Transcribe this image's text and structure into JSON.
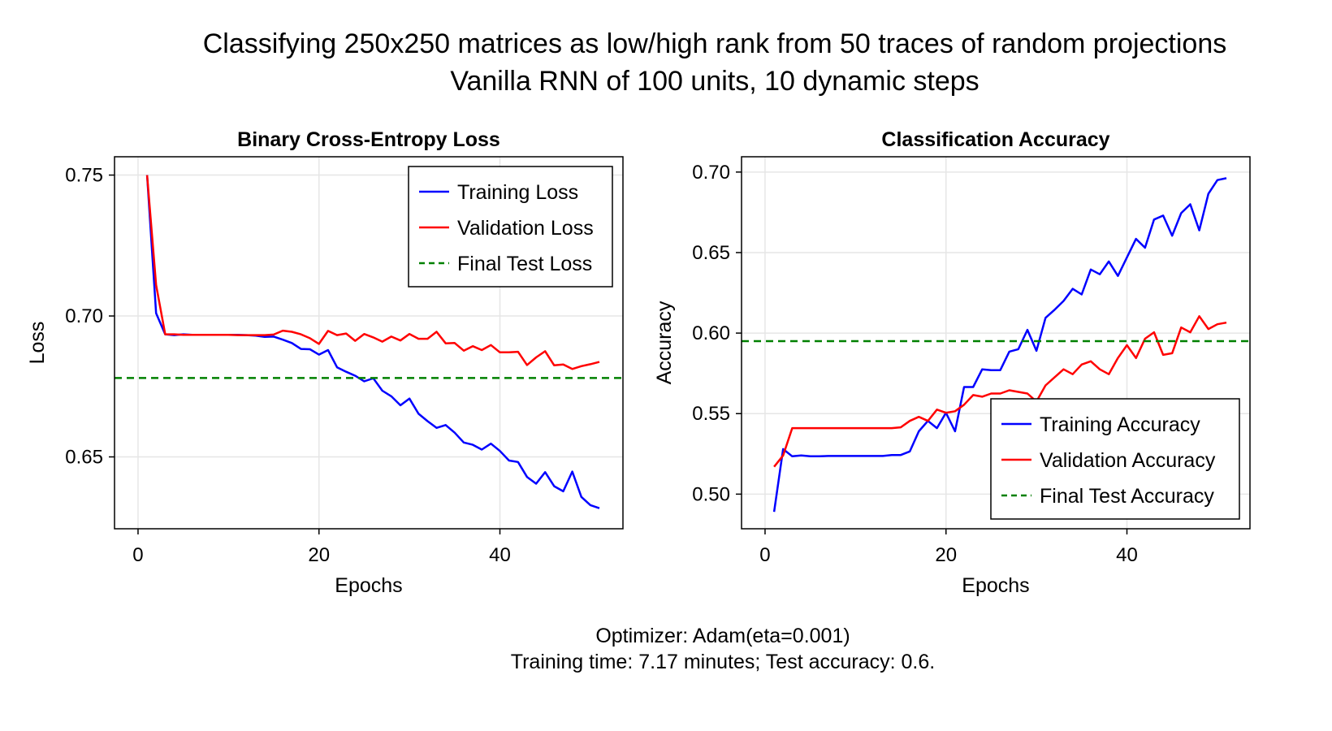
{
  "figure": {
    "title_line1": "Classifying 250x250 matrices as low/high rank from 50 traces of random projections",
    "title_line2": "Vanilla RNN of 100 units, 10 dynamic steps",
    "footer_line1": "Optimizer: Adam(eta=0.001)",
    "footer_line2": "Training time: 7.17 minutes; Test accuracy: 0.6."
  },
  "colors": {
    "training": "#0000ff",
    "validation": "#ff0000",
    "final_test": "#008000",
    "grid": "#e6e6e6"
  },
  "chart_data": [
    {
      "type": "line",
      "title": "Binary Cross-Entropy Loss",
      "xlabel": "Epochs",
      "ylabel": "Loss",
      "xlim": [
        -2.6,
        53.6
      ],
      "ylim": [
        0.6245,
        0.7565
      ],
      "xticks": [
        0,
        20,
        40
      ],
      "xtick_labels": [
        "0",
        "20",
        "40"
      ],
      "yticks": [
        0.65,
        0.7,
        0.75
      ],
      "ytick_labels": [
        "0.65",
        "0.70",
        "0.75"
      ],
      "grid": true,
      "legend_position": "top-right",
      "x": [
        1,
        2,
        3,
        4,
        5,
        6,
        7,
        8,
        9,
        10,
        11,
        12,
        13,
        14,
        15,
        16,
        17,
        18,
        19,
        20,
        21,
        22,
        23,
        24,
        25,
        26,
        27,
        28,
        29,
        30,
        31,
        32,
        33,
        34,
        35,
        36,
        37,
        38,
        39,
        40,
        41,
        42,
        43,
        44,
        45,
        46,
        47,
        48,
        49,
        50,
        51
      ],
      "series": [
        {
          "name": "Training Loss",
          "color": "#0000ff",
          "values": [
            0.75,
            0.701,
            0.6935,
            0.6932,
            0.6935,
            0.6933,
            0.6933,
            0.6933,
            0.6933,
            0.6933,
            0.6933,
            0.6932,
            0.693,
            0.6926,
            0.6927,
            0.6916,
            0.6904,
            0.6883,
            0.6882,
            0.6863,
            0.6879,
            0.6818,
            0.6802,
            0.6788,
            0.6768,
            0.6779,
            0.6735,
            0.6715,
            0.6683,
            0.6707,
            0.6653,
            0.6627,
            0.6603,
            0.6613,
            0.6586,
            0.6551,
            0.6543,
            0.6526,
            0.6547,
            0.6521,
            0.6487,
            0.6482,
            0.6429,
            0.6405,
            0.6446,
            0.6396,
            0.6378,
            0.6448,
            0.6358,
            0.6329,
            0.6318
          ]
        },
        {
          "name": "Validation Loss",
          "color": "#ff0000",
          "values": [
            0.75,
            0.711,
            0.6935,
            0.6935,
            0.6933,
            0.6933,
            0.6933,
            0.6933,
            0.6933,
            0.6933,
            0.6932,
            0.6932,
            0.6932,
            0.6932,
            0.6934,
            0.6948,
            0.6944,
            0.6935,
            0.6921,
            0.6901,
            0.6947,
            0.6932,
            0.6938,
            0.6912,
            0.6936,
            0.6924,
            0.6909,
            0.6927,
            0.6913,
            0.6936,
            0.6919,
            0.6919,
            0.6944,
            0.6903,
            0.6904,
            0.6877,
            0.6893,
            0.6879,
            0.6897,
            0.6871,
            0.6871,
            0.6873,
            0.6826,
            0.6853,
            0.6875,
            0.6825,
            0.6828,
            0.6812,
            0.6822,
            0.6829,
            0.6837
          ]
        },
        {
          "name": "Final Test Loss",
          "color": "#008000",
          "constant": 0.678,
          "dashed": true
        }
      ]
    },
    {
      "type": "line",
      "title": "Classification Accuracy",
      "xlabel": "Epochs",
      "ylabel": "Accuracy",
      "xlim": [
        -2.6,
        53.6
      ],
      "ylim": [
        0.4785,
        0.7095
      ],
      "xticks": [
        0,
        20,
        40
      ],
      "xtick_labels": [
        "0",
        "20",
        "40"
      ],
      "yticks": [
        0.5,
        0.55,
        0.6,
        0.65,
        0.7
      ],
      "ytick_labels": [
        "0.50",
        "0.55",
        "0.60",
        "0.65",
        "0.70"
      ],
      "grid": true,
      "legend_position": "bottom-right",
      "x": [
        1,
        2,
        3,
        4,
        5,
        6,
        7,
        8,
        9,
        10,
        11,
        12,
        13,
        14,
        15,
        16,
        17,
        18,
        19,
        20,
        21,
        22,
        23,
        24,
        25,
        26,
        27,
        28,
        29,
        30,
        31,
        32,
        33,
        34,
        35,
        36,
        37,
        38,
        39,
        40,
        41,
        42,
        43,
        44,
        45,
        46,
        47,
        48,
        49,
        50,
        51
      ],
      "series": [
        {
          "name": "Training Accuracy",
          "color": "#0000ff",
          "values": [
            0.489,
            0.528,
            0.5235,
            0.524,
            0.5235,
            0.5235,
            0.5237,
            0.5237,
            0.5237,
            0.5237,
            0.5237,
            0.5237,
            0.5237,
            0.5243,
            0.5243,
            0.5265,
            0.539,
            0.5455,
            0.541,
            0.5505,
            0.539,
            0.5665,
            0.5665,
            0.5775,
            0.577,
            0.577,
            0.5885,
            0.59,
            0.602,
            0.589,
            0.6095,
            0.6145,
            0.62,
            0.6275,
            0.624,
            0.6395,
            0.6365,
            0.6445,
            0.6355,
            0.647,
            0.6585,
            0.653,
            0.6705,
            0.673,
            0.6605,
            0.6745,
            0.68,
            0.6638,
            0.6865,
            0.695,
            0.6962
          ]
        },
        {
          "name": "Validation Accuracy",
          "color": "#ff0000",
          "values": [
            0.517,
            0.524,
            0.541,
            0.541,
            0.541,
            0.541,
            0.541,
            0.541,
            0.541,
            0.541,
            0.541,
            0.541,
            0.541,
            0.541,
            0.5415,
            0.5455,
            0.548,
            0.5455,
            0.5525,
            0.5505,
            0.5515,
            0.5555,
            0.5615,
            0.5605,
            0.5625,
            0.5625,
            0.5645,
            0.5635,
            0.5625,
            0.5575,
            0.5675,
            0.5725,
            0.5775,
            0.5745,
            0.5805,
            0.5825,
            0.5775,
            0.5745,
            0.5845,
            0.5925,
            0.5845,
            0.5965,
            0.6005,
            0.5865,
            0.5875,
            0.6035,
            0.6005,
            0.6105,
            0.6025,
            0.6055,
            0.6065
          ]
        },
        {
          "name": "Final Test Accuracy",
          "color": "#008000",
          "constant": 0.595,
          "dashed": true
        }
      ]
    }
  ]
}
